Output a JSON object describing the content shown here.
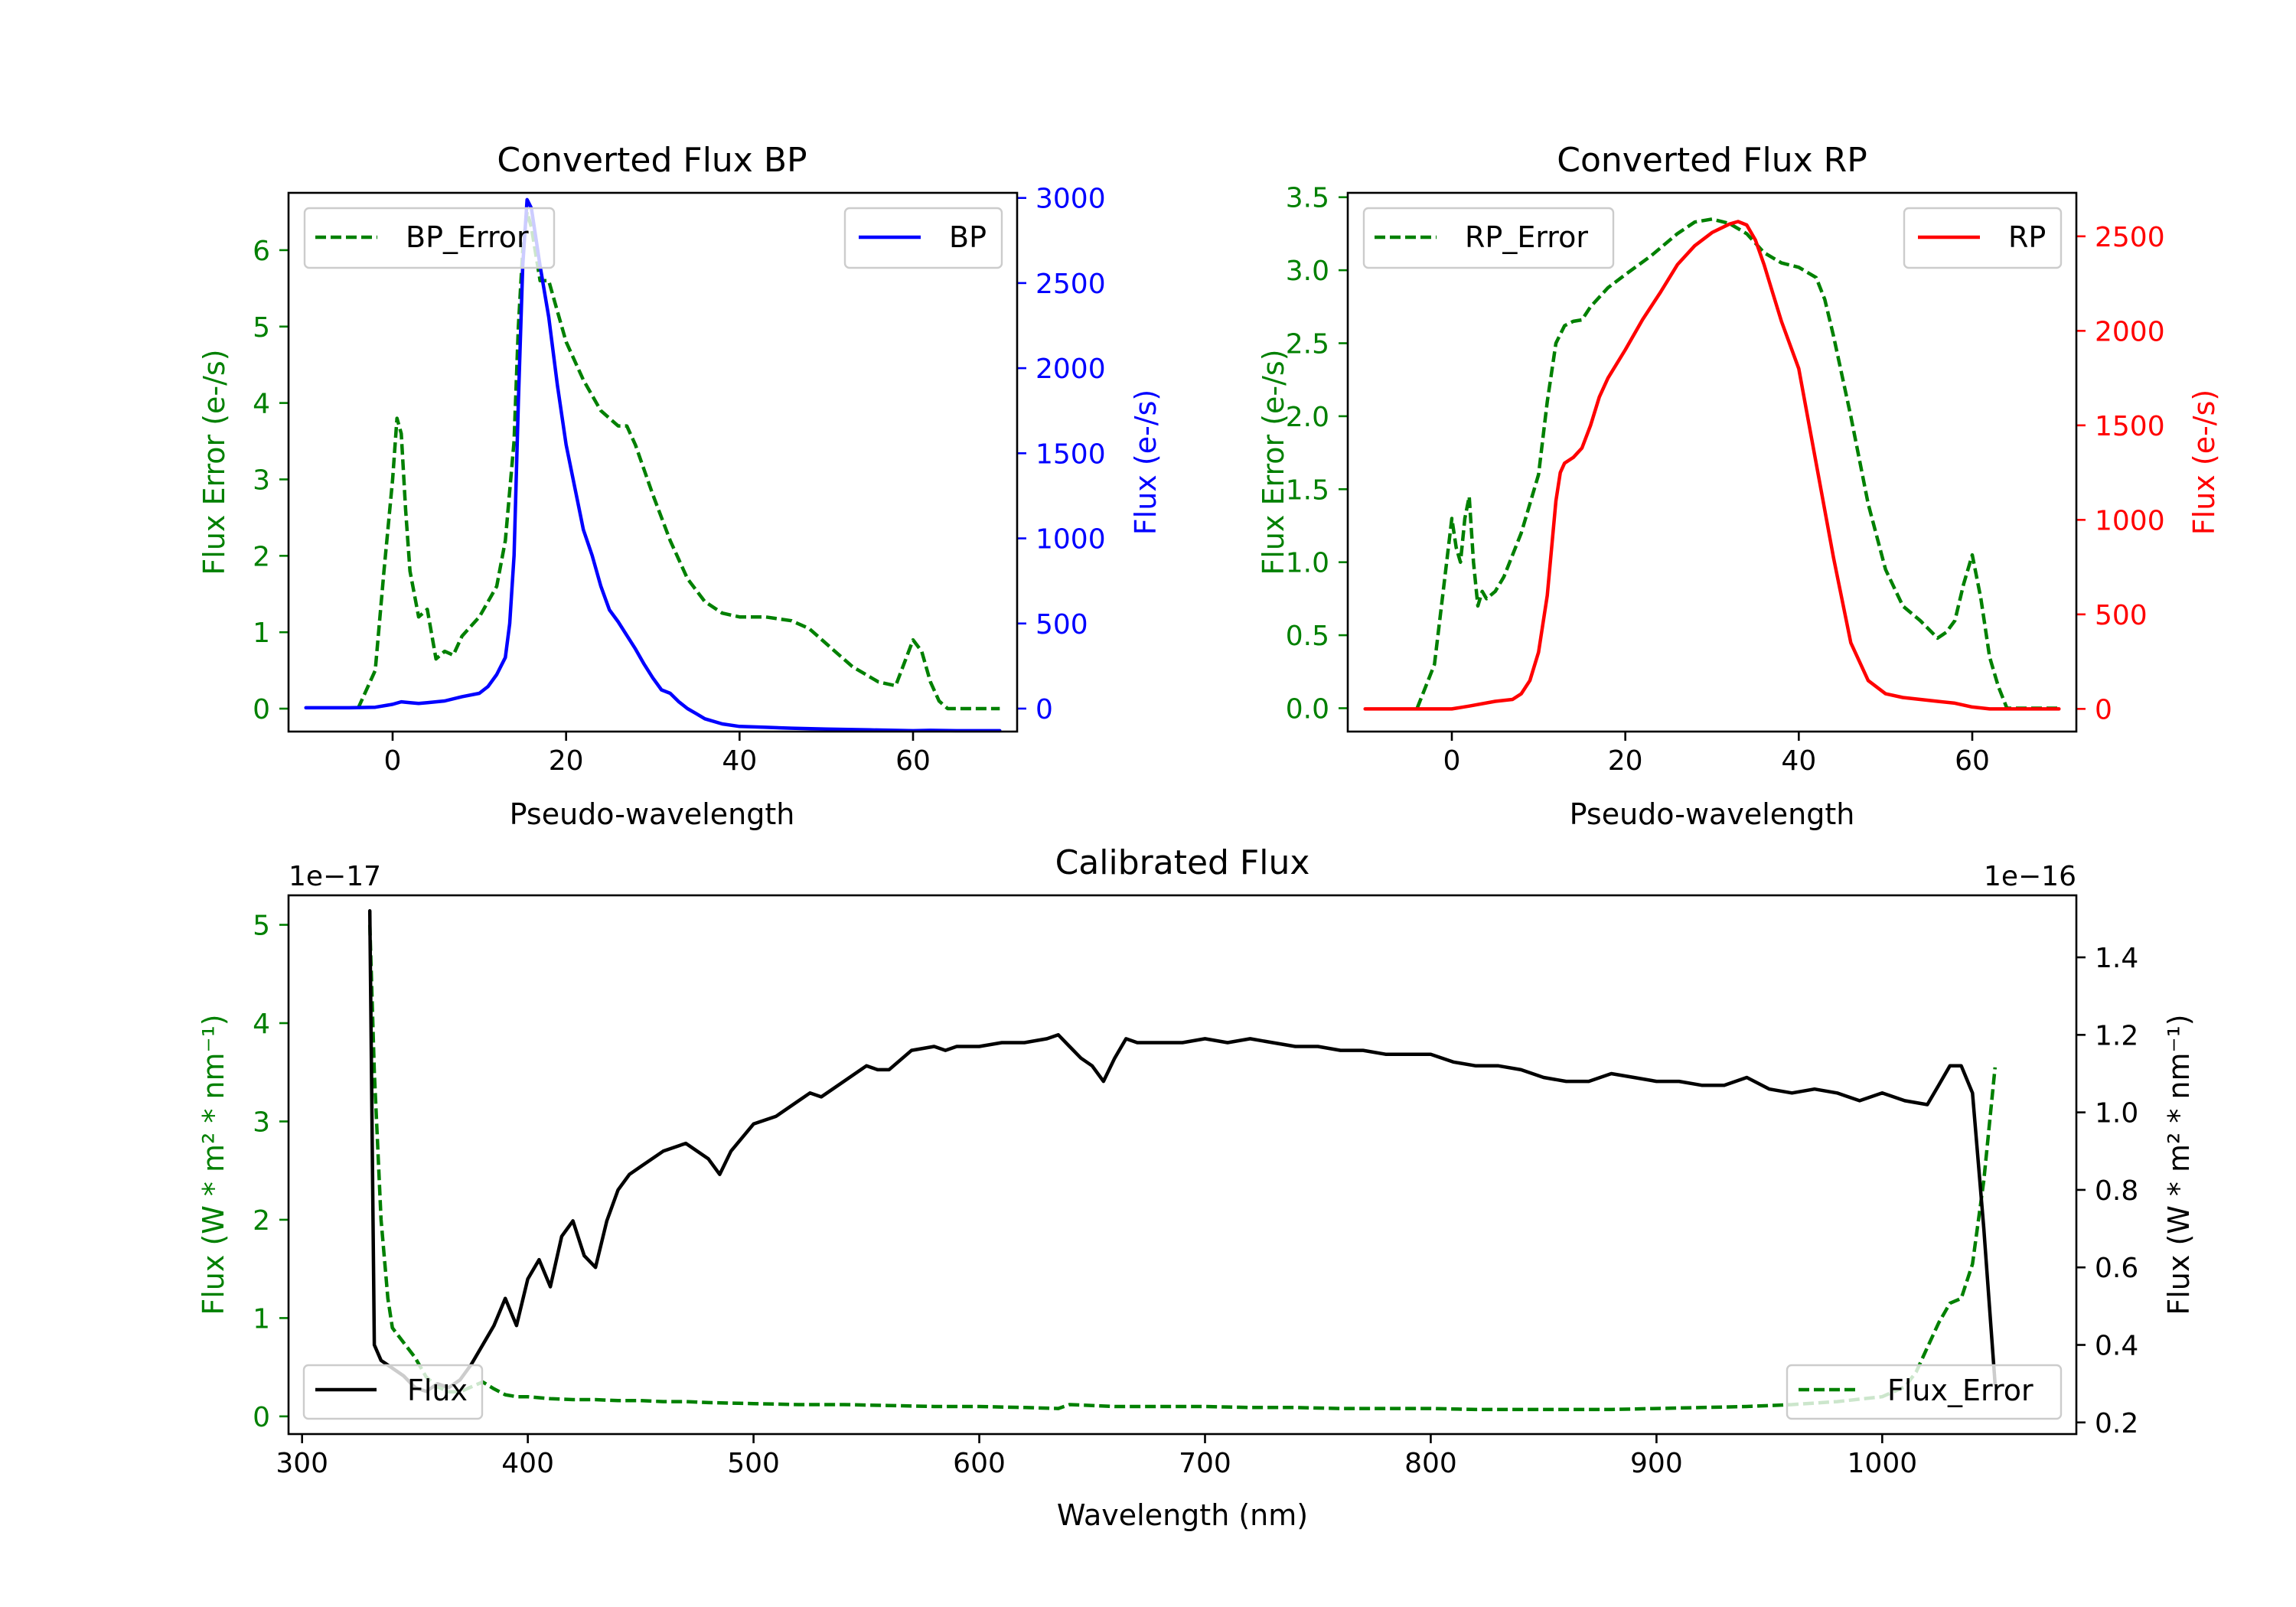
{
  "colors": {
    "bp": "#0000ff",
    "rp": "#ff0000",
    "error": "#008000",
    "flux": "#000000",
    "axis": "#000000"
  },
  "chart_data": [
    {
      "id": "bp",
      "type": "line",
      "title": "Converted Flux BP",
      "xlabel": "Pseudo-wavelength",
      "ylabel_left": "Flux Error (e-/s)",
      "ylabel_right": "Flux (e-/s)",
      "xlim": [
        -12,
        72
      ],
      "ylim_left": [
        -0.3,
        6.75
      ],
      "ylim_right": [
        -135,
        3030
      ],
      "xticks": [
        0,
        20,
        40,
        60
      ],
      "yticks_left": [
        0,
        1,
        2,
        3,
        4,
        5,
        6
      ],
      "yticks_right": [
        0,
        500,
        1000,
        1500,
        2000,
        2500,
        3000
      ],
      "legend_left": {
        "label": "BP_Error",
        "placement": "upper-left"
      },
      "legend_right": {
        "label": "BP",
        "placement": "upper-right"
      },
      "series": [
        {
          "name": "BP_Error",
          "axis": "left",
          "style": "dashed",
          "color": "green",
          "x": [
            -4,
            -2,
            -1,
            0,
            0.5,
            1,
            1.5,
            2,
            3,
            4,
            5,
            6,
            7,
            8,
            10,
            12,
            13,
            14,
            14.5,
            15,
            15.5,
            16,
            17,
            18,
            19,
            20,
            22,
            24,
            26,
            27,
            28,
            30,
            32,
            34,
            36,
            38,
            40,
            43,
            46,
            48,
            50,
            53,
            56,
            58,
            59,
            60,
            61,
            62,
            63,
            64,
            66,
            68,
            70
          ],
          "values": [
            0,
            0.5,
            1.8,
            3.0,
            3.8,
            3.6,
            2.6,
            1.8,
            1.2,
            1.3,
            0.65,
            0.75,
            0.7,
            0.95,
            1.2,
            1.6,
            2.2,
            3.5,
            5.0,
            6.0,
            6.5,
            6.3,
            5.6,
            5.6,
            5.2,
            4.8,
            4.3,
            3.9,
            3.7,
            3.7,
            3.45,
            2.8,
            2.2,
            1.7,
            1.4,
            1.25,
            1.2,
            1.2,
            1.15,
            1.05,
            0.85,
            0.55,
            0.35,
            0.3,
            0.6,
            0.9,
            0.75,
            0.35,
            0.1,
            0.0,
            0,
            0,
            0
          ]
        },
        {
          "name": "BP",
          "axis": "right",
          "style": "solid",
          "color": "blue",
          "x": [
            -10,
            -5,
            -2,
            0,
            1,
            2,
            3,
            4,
            6,
            8,
            10,
            11,
            12,
            13,
            13.5,
            14,
            14.5,
            15,
            15.5,
            16,
            17,
            18,
            19,
            20,
            21,
            22,
            23,
            24,
            25,
            26,
            27,
            28,
            29,
            30,
            31,
            32,
            33,
            34,
            35,
            36,
            38,
            40,
            43,
            46,
            50,
            55,
            60,
            62,
            65,
            70
          ],
          "values": [
            5,
            5,
            8,
            25,
            40,
            35,
            30,
            35,
            45,
            70,
            90,
            130,
            200,
            300,
            500,
            900,
            1800,
            2600,
            2990,
            2940,
            2600,
            2300,
            1900,
            1550,
            1300,
            1050,
            900,
            720,
            580,
            510,
            430,
            350,
            260,
            180,
            110,
            90,
            40,
            0,
            -30,
            -60,
            -90,
            -105,
            -110,
            -115,
            -120,
            -125,
            -130,
            -128,
            -130,
            -130
          ]
        }
      ]
    },
    {
      "id": "rp",
      "type": "line",
      "title": "Converted Flux RP",
      "xlabel": "Pseudo-wavelength",
      "ylabel_left": "Flux Error (e-/s)",
      "ylabel_right": "Flux (e-/s)",
      "xlim": [
        -12,
        72
      ],
      "ylim_left": [
        -0.16,
        3.53
      ],
      "ylim_right": [
        -120,
        2730
      ],
      "xticks": [
        0,
        20,
        40,
        60
      ],
      "yticks_left": [
        0.0,
        0.5,
        1.0,
        1.5,
        2.0,
        2.5,
        3.0,
        3.5
      ],
      "yticks_right": [
        0,
        500,
        1000,
        1500,
        2000,
        2500
      ],
      "legend_left": {
        "label": "RP_Error",
        "placement": "upper-left"
      },
      "legend_right": {
        "label": "RP",
        "placement": "upper-right"
      },
      "series": [
        {
          "name": "RP_Error",
          "axis": "left",
          "style": "dashed",
          "color": "green",
          "x": [
            -4,
            -2,
            -1,
            0,
            0.5,
            1,
            1.5,
            2,
            2.5,
            3,
            3.5,
            4,
            5,
            6,
            8,
            10,
            11,
            12,
            13,
            14,
            15,
            16,
            18,
            20,
            23,
            26,
            28,
            30,
            32,
            34,
            36,
            38,
            40,
            42,
            43,
            44,
            46,
            48,
            50,
            52,
            54,
            56,
            57,
            58,
            59,
            60,
            61,
            62,
            63,
            64,
            66,
            70
          ],
          "values": [
            0,
            0.3,
            0.8,
            1.3,
            1.1,
            1.0,
            1.3,
            1.45,
            1.0,
            0.7,
            0.8,
            0.75,
            0.8,
            0.9,
            1.2,
            1.6,
            2.1,
            2.5,
            2.62,
            2.65,
            2.66,
            2.75,
            2.88,
            2.97,
            3.1,
            3.25,
            3.33,
            3.35,
            3.32,
            3.25,
            3.12,
            3.05,
            3.02,
            2.95,
            2.8,
            2.55,
            2.0,
            1.4,
            0.95,
            0.7,
            0.6,
            0.48,
            0.52,
            0.6,
            0.85,
            1.05,
            0.75,
            0.35,
            0.15,
            0.0,
            0,
            0
          ]
        },
        {
          "name": "RP",
          "axis": "right",
          "style": "solid",
          "color": "red",
          "x": [
            -10,
            -5,
            -2,
            0,
            2,
            5,
            7,
            8,
            9,
            10,
            11,
            12,
            12.5,
            13,
            14,
            15,
            16,
            17,
            18,
            20,
            22,
            24,
            26,
            28,
            30,
            32,
            33,
            34,
            35,
            36,
            37,
            38,
            40,
            42,
            44,
            46,
            48,
            50,
            52,
            54,
            56,
            58,
            60,
            62,
            65,
            70
          ],
          "values": [
            0,
            0,
            0,
            0,
            15,
            40,
            50,
            80,
            150,
            300,
            600,
            1100,
            1250,
            1300,
            1330,
            1380,
            1500,
            1650,
            1750,
            1900,
            2060,
            2200,
            2350,
            2450,
            2520,
            2565,
            2578,
            2560,
            2480,
            2350,
            2200,
            2050,
            1800,
            1300,
            800,
            350,
            150,
            80,
            60,
            50,
            40,
            30,
            10,
            0,
            0,
            0
          ]
        }
      ]
    },
    {
      "id": "calibrated",
      "type": "line",
      "title": "Calibrated Flux",
      "xlabel": "Wavelength (nm)",
      "ylabel_left": "Flux (W * m² * nm⁻¹)",
      "ylabel_right": "Flux (W * m² * nm⁻¹)",
      "offset_left": "1e−17",
      "offset_right": "1e−16",
      "xlim": [
        294,
        1086
      ],
      "ylim_left": [
        -0.18,
        5.3
      ],
      "ylim_right": [
        0.17,
        1.56
      ],
      "xticks": [
        300,
        400,
        500,
        600,
        700,
        800,
        900,
        1000
      ],
      "yticks_left": [
        0,
        1,
        2,
        3,
        4,
        5
      ],
      "yticks_right": [
        0.2,
        0.4,
        0.6,
        0.8,
        1.0,
        1.2,
        1.4
      ],
      "legend_left": {
        "label": "Flux",
        "placement": "lower-left"
      },
      "legend_right": {
        "label": "Flux_Error",
        "placement": "lower-right"
      },
      "series": [
        {
          "name": "Flux",
          "axis": "right",
          "style": "solid",
          "color": "black",
          "x": [
            330,
            332,
            335,
            340,
            345,
            350,
            355,
            360,
            365,
            370,
            375,
            380,
            385,
            390,
            395,
            400,
            405,
            410,
            415,
            420,
            425,
            430,
            435,
            440,
            445,
            450,
            460,
            470,
            480,
            485,
            490,
            500,
            510,
            520,
            525,
            530,
            540,
            550,
            555,
            560,
            570,
            580,
            585,
            590,
            600,
            610,
            620,
            630,
            635,
            640,
            645,
            650,
            655,
            660,
            665,
            670,
            680,
            690,
            700,
            710,
            720,
            730,
            740,
            750,
            760,
            770,
            780,
            790,
            800,
            810,
            820,
            830,
            840,
            850,
            860,
            870,
            880,
            890,
            900,
            910,
            920,
            930,
            940,
            950,
            960,
            970,
            980,
            990,
            1000,
            1010,
            1020,
            1025,
            1030,
            1035,
            1040,
            1045,
            1050
          ],
          "values": [
            1.52,
            0.4,
            0.36,
            0.34,
            0.32,
            0.29,
            0.28,
            0.3,
            0.29,
            0.31,
            0.35,
            0.4,
            0.45,
            0.52,
            0.45,
            0.57,
            0.62,
            0.55,
            0.68,
            0.72,
            0.63,
            0.6,
            0.72,
            0.8,
            0.84,
            0.86,
            0.9,
            0.92,
            0.88,
            0.84,
            0.9,
            0.97,
            0.99,
            1.03,
            1.05,
            1.04,
            1.08,
            1.12,
            1.11,
            1.11,
            1.16,
            1.17,
            1.16,
            1.17,
            1.17,
            1.18,
            1.18,
            1.19,
            1.2,
            1.17,
            1.14,
            1.12,
            1.08,
            1.14,
            1.19,
            1.18,
            1.18,
            1.18,
            1.19,
            1.18,
            1.19,
            1.18,
            1.17,
            1.17,
            1.16,
            1.16,
            1.15,
            1.15,
            1.15,
            1.13,
            1.12,
            1.12,
            1.11,
            1.09,
            1.08,
            1.08,
            1.1,
            1.09,
            1.08,
            1.08,
            1.07,
            1.07,
            1.09,
            1.06,
            1.05,
            1.06,
            1.05,
            1.03,
            1.05,
            1.03,
            1.02,
            1.07,
            1.12,
            1.12,
            1.05,
            0.7,
            0.3
          ]
        },
        {
          "name": "Flux_Error",
          "axis": "left",
          "style": "dashed",
          "color": "green",
          "x": [
            330,
            332,
            335,
            338,
            340,
            345,
            350,
            355,
            360,
            365,
            370,
            375,
            380,
            385,
            390,
            395,
            400,
            410,
            420,
            430,
            440,
            450,
            460,
            470,
            480,
            500,
            520,
            540,
            560,
            580,
            600,
            620,
            635,
            640,
            650,
            660,
            680,
            700,
            720,
            740,
            760,
            780,
            800,
            820,
            840,
            860,
            880,
            900,
            920,
            940,
            960,
            980,
            1000,
            1010,
            1015,
            1020,
            1025,
            1030,
            1035,
            1040,
            1045,
            1050
          ],
          "values": [
            5.0,
            3.5,
            2.0,
            1.2,
            0.9,
            0.75,
            0.6,
            0.4,
            0.3,
            0.25,
            0.25,
            0.3,
            0.35,
            0.28,
            0.22,
            0.2,
            0.2,
            0.18,
            0.17,
            0.17,
            0.16,
            0.16,
            0.15,
            0.15,
            0.14,
            0.13,
            0.12,
            0.12,
            0.11,
            0.1,
            0.1,
            0.09,
            0.08,
            0.12,
            0.11,
            0.1,
            0.1,
            0.1,
            0.09,
            0.09,
            0.08,
            0.08,
            0.08,
            0.07,
            0.07,
            0.07,
            0.07,
            0.08,
            0.09,
            0.1,
            0.12,
            0.15,
            0.2,
            0.3,
            0.45,
            0.7,
            0.95,
            1.15,
            1.2,
            1.55,
            2.4,
            3.55
          ]
        }
      ]
    }
  ]
}
